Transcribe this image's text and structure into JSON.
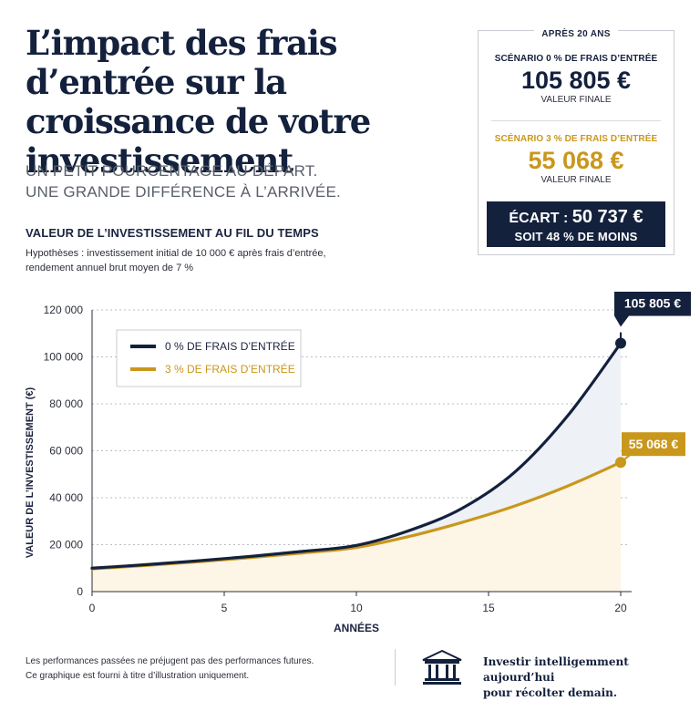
{
  "header": {
    "title": "L’impact des frais d’entrée sur la croissance de votre investissement",
    "subtitle_line1": "UN PETIT POURCENTAGE AU DÉPART.",
    "subtitle_line2": "UNE GRANDE DIFFÉRENCE À L’ARRIVÉE."
  },
  "section": {
    "title": "VALEUR DE L’INVESTISSEMENT AU FIL DU TEMPS",
    "hypotheses_line1": "Hypothèses : investissement initial de 10 000 € après frais d’entrée,",
    "hypotheses_line2": "rendement annuel brut moyen de 7 %"
  },
  "summary": {
    "header": "APRÈS 20 ANS",
    "scenario0_label": "SCÉNARIO 0 % DE FRAIS D’ENTRÉE",
    "scenario0_value": "105 805 €",
    "scenario0_sub": "VALEUR FINALE",
    "scenario3_label": "SCÉNARIO 3 % DE FRAIS D’ENTRÉE",
    "scenario3_value": "55 068 €",
    "scenario3_sub": "VALEUR FINALE",
    "gap_prefix": "ÉCART : ",
    "gap_value": "50 737 €",
    "gap_line2": "SOIT 48 % DE MOINS"
  },
  "footer": {
    "note_line1": "Les performances passées ne préjugent pas des performances futures.",
    "note_line2": "Ce graphique est fourni à titre d’illustration uniquement.",
    "tagline_line1": "Investir intelligemment aujourd’hui",
    "tagline_line2": "pour récolter demain."
  },
  "colors": {
    "navy": "#14213d",
    "gold": "#c9971c",
    "navy_fill": "#eef1f5",
    "gold_fill": "#fdf5e6",
    "grid": "#b9bdc6"
  },
  "chart_data": {
    "type": "area",
    "xlabel": "ANNÉES",
    "ylabel": "VALEUR DE L’INVESTISSEMENT (€)",
    "xlim": [
      0,
      20
    ],
    "ylim": [
      0,
      120000
    ],
    "xticks": [
      0,
      5,
      10,
      15,
      20
    ],
    "yticks": [
      0,
      20000,
      40000,
      60000,
      80000,
      100000,
      120000
    ],
    "ytick_labels": [
      "0",
      "20 000",
      "40 000",
      "60 000",
      "80 000",
      "100 000",
      "120 000"
    ],
    "grid": true,
    "legend_position": "top-left",
    "x": [
      0,
      2,
      4,
      6,
      8,
      10,
      12,
      14,
      16,
      18,
      20
    ],
    "series": [
      {
        "name": "0 % DE FRAIS D’ENTRÉE",
        "color": "#14213d",
        "values": [
          10000,
          11449,
          13108,
          15007,
          17182,
          19672,
          26000,
          35500,
          51000,
          75000,
          105805
        ],
        "end_label": "105 805 €"
      },
      {
        "name": "3 % DE FRAIS D’ENTRÉE",
        "color": "#c9971c",
        "values": [
          9700,
          11100,
          12700,
          14500,
          16500,
          18800,
          23500,
          29500,
          36500,
          45000,
          55068
        ],
        "end_label": "55 068 €"
      }
    ]
  }
}
